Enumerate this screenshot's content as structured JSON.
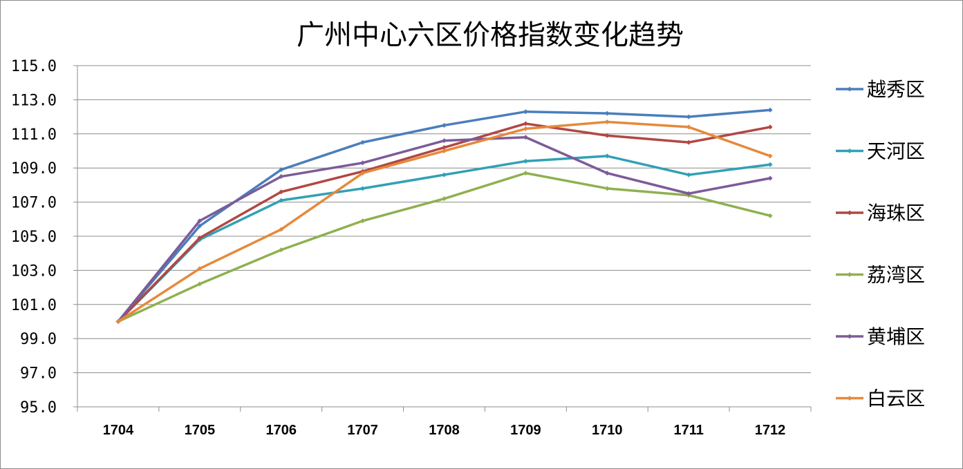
{
  "chart_data": {
    "type": "line",
    "title": "广州中心六区价格指数变化趋势",
    "xlabel": "",
    "ylabel": "",
    "categories": [
      "1704",
      "1705",
      "1706",
      "1707",
      "1708",
      "1709",
      "1710",
      "1711",
      "1712"
    ],
    "ylim": [
      95.0,
      115.0
    ],
    "yticks": [
      "95.0",
      "97.0",
      "99.0",
      "101.0",
      "103.0",
      "105.0",
      "107.0",
      "109.0",
      "111.0",
      "113.0",
      "115.0"
    ],
    "grid": true,
    "legend": "right",
    "series": [
      {
        "name": "越秀区",
        "color": "#4a7ebb",
        "values": [
          100.0,
          105.6,
          108.9,
          110.5,
          111.5,
          112.3,
          112.2,
          112.0,
          112.4
        ]
      },
      {
        "name": "天河区",
        "color": "#31a0b5",
        "values": [
          100.0,
          104.8,
          107.1,
          107.8,
          108.6,
          109.4,
          109.7,
          108.6,
          109.2
        ]
      },
      {
        "name": "海珠区",
        "color": "#b04843",
        "values": [
          100.0,
          104.9,
          107.6,
          108.8,
          110.2,
          111.6,
          110.9,
          110.5,
          111.4
        ]
      },
      {
        "name": "荔湾区",
        "color": "#8fb04f",
        "values": [
          100.0,
          102.2,
          104.2,
          105.9,
          107.2,
          108.7,
          107.8,
          107.4,
          106.2
        ]
      },
      {
        "name": "黄埔区",
        "color": "#7c5b99",
        "values": [
          100.0,
          105.9,
          108.5,
          109.3,
          110.6,
          110.8,
          108.7,
          107.5,
          108.4
        ]
      },
      {
        "name": "白云区",
        "color": "#e6893a",
        "values": [
          100.0,
          103.1,
          105.4,
          108.7,
          110.0,
          111.3,
          111.7,
          111.4,
          109.7
        ]
      }
    ]
  }
}
